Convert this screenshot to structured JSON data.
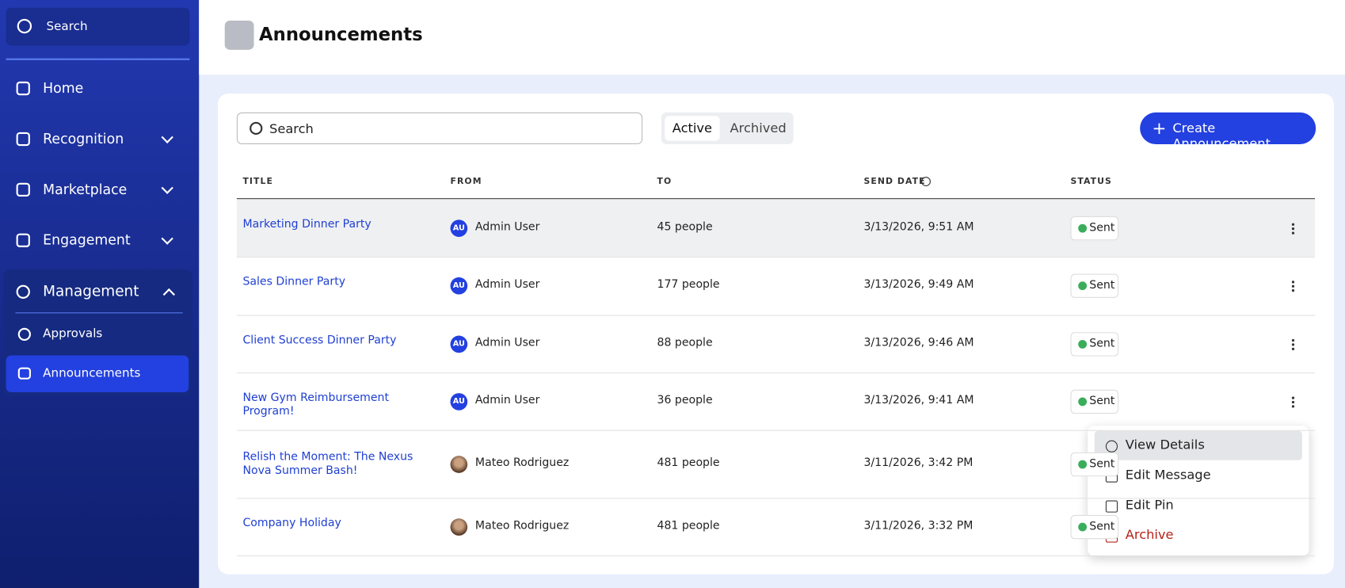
{
  "sidebar": {
    "search": "Search",
    "nav": [
      "Home",
      "Recognition",
      "Marketplace",
      "Engagement"
    ],
    "section": "Management",
    "subnav": [
      "Approvals",
      "Announcements"
    ]
  },
  "header": {
    "title": "Announcements"
  },
  "toolbar": {
    "search": "Search",
    "tabs": [
      "Active",
      "Archived"
    ],
    "button": "Create Announcement"
  },
  "table": {
    "columns": [
      "TITLE",
      "FROM",
      "TO",
      "SEND DATE",
      "STATUS"
    ],
    "rows": [
      {
        "title": "Marketing Dinner Party",
        "avatar": "AU",
        "from": "Admin User",
        "to": "45 people",
        "date": "3/13/2026, 9:51 AM",
        "status": "Sent"
      },
      {
        "title": "Sales Dinner Party",
        "avatar": "AU",
        "from": "Admin User",
        "to": "177 people",
        "date": "3/13/2026, 9:49 AM",
        "status": "Sent"
      },
      {
        "title": "Client Success Dinner Party",
        "avatar": "AU",
        "from": "Admin User",
        "to": "88 people",
        "date": "3/13/2026, 9:46 AM",
        "status": "Sent"
      },
      {
        "title": "New Gym Reimbursement Program!",
        "avatar": "AU",
        "from": "Admin User",
        "to": "36 people",
        "date": "3/13/2026, 9:41 AM",
        "status": "Sent"
      },
      {
        "title": "Relish the Moment: The Nexus Nova Summer Bash!",
        "from": "Mateo Rodriguez",
        "to": "481 people",
        "date": "3/11/2026, 3:42 PM",
        "status": "Sent"
      },
      {
        "title": "Company Holiday",
        "from": "Mateo Rodriguez",
        "to": "481 people",
        "date": "3/11/2026, 3:32 PM",
        "status": "Sent"
      }
    ]
  },
  "menu": [
    "View Details",
    "Edit Message",
    "Edit Pin",
    "Archive"
  ]
}
